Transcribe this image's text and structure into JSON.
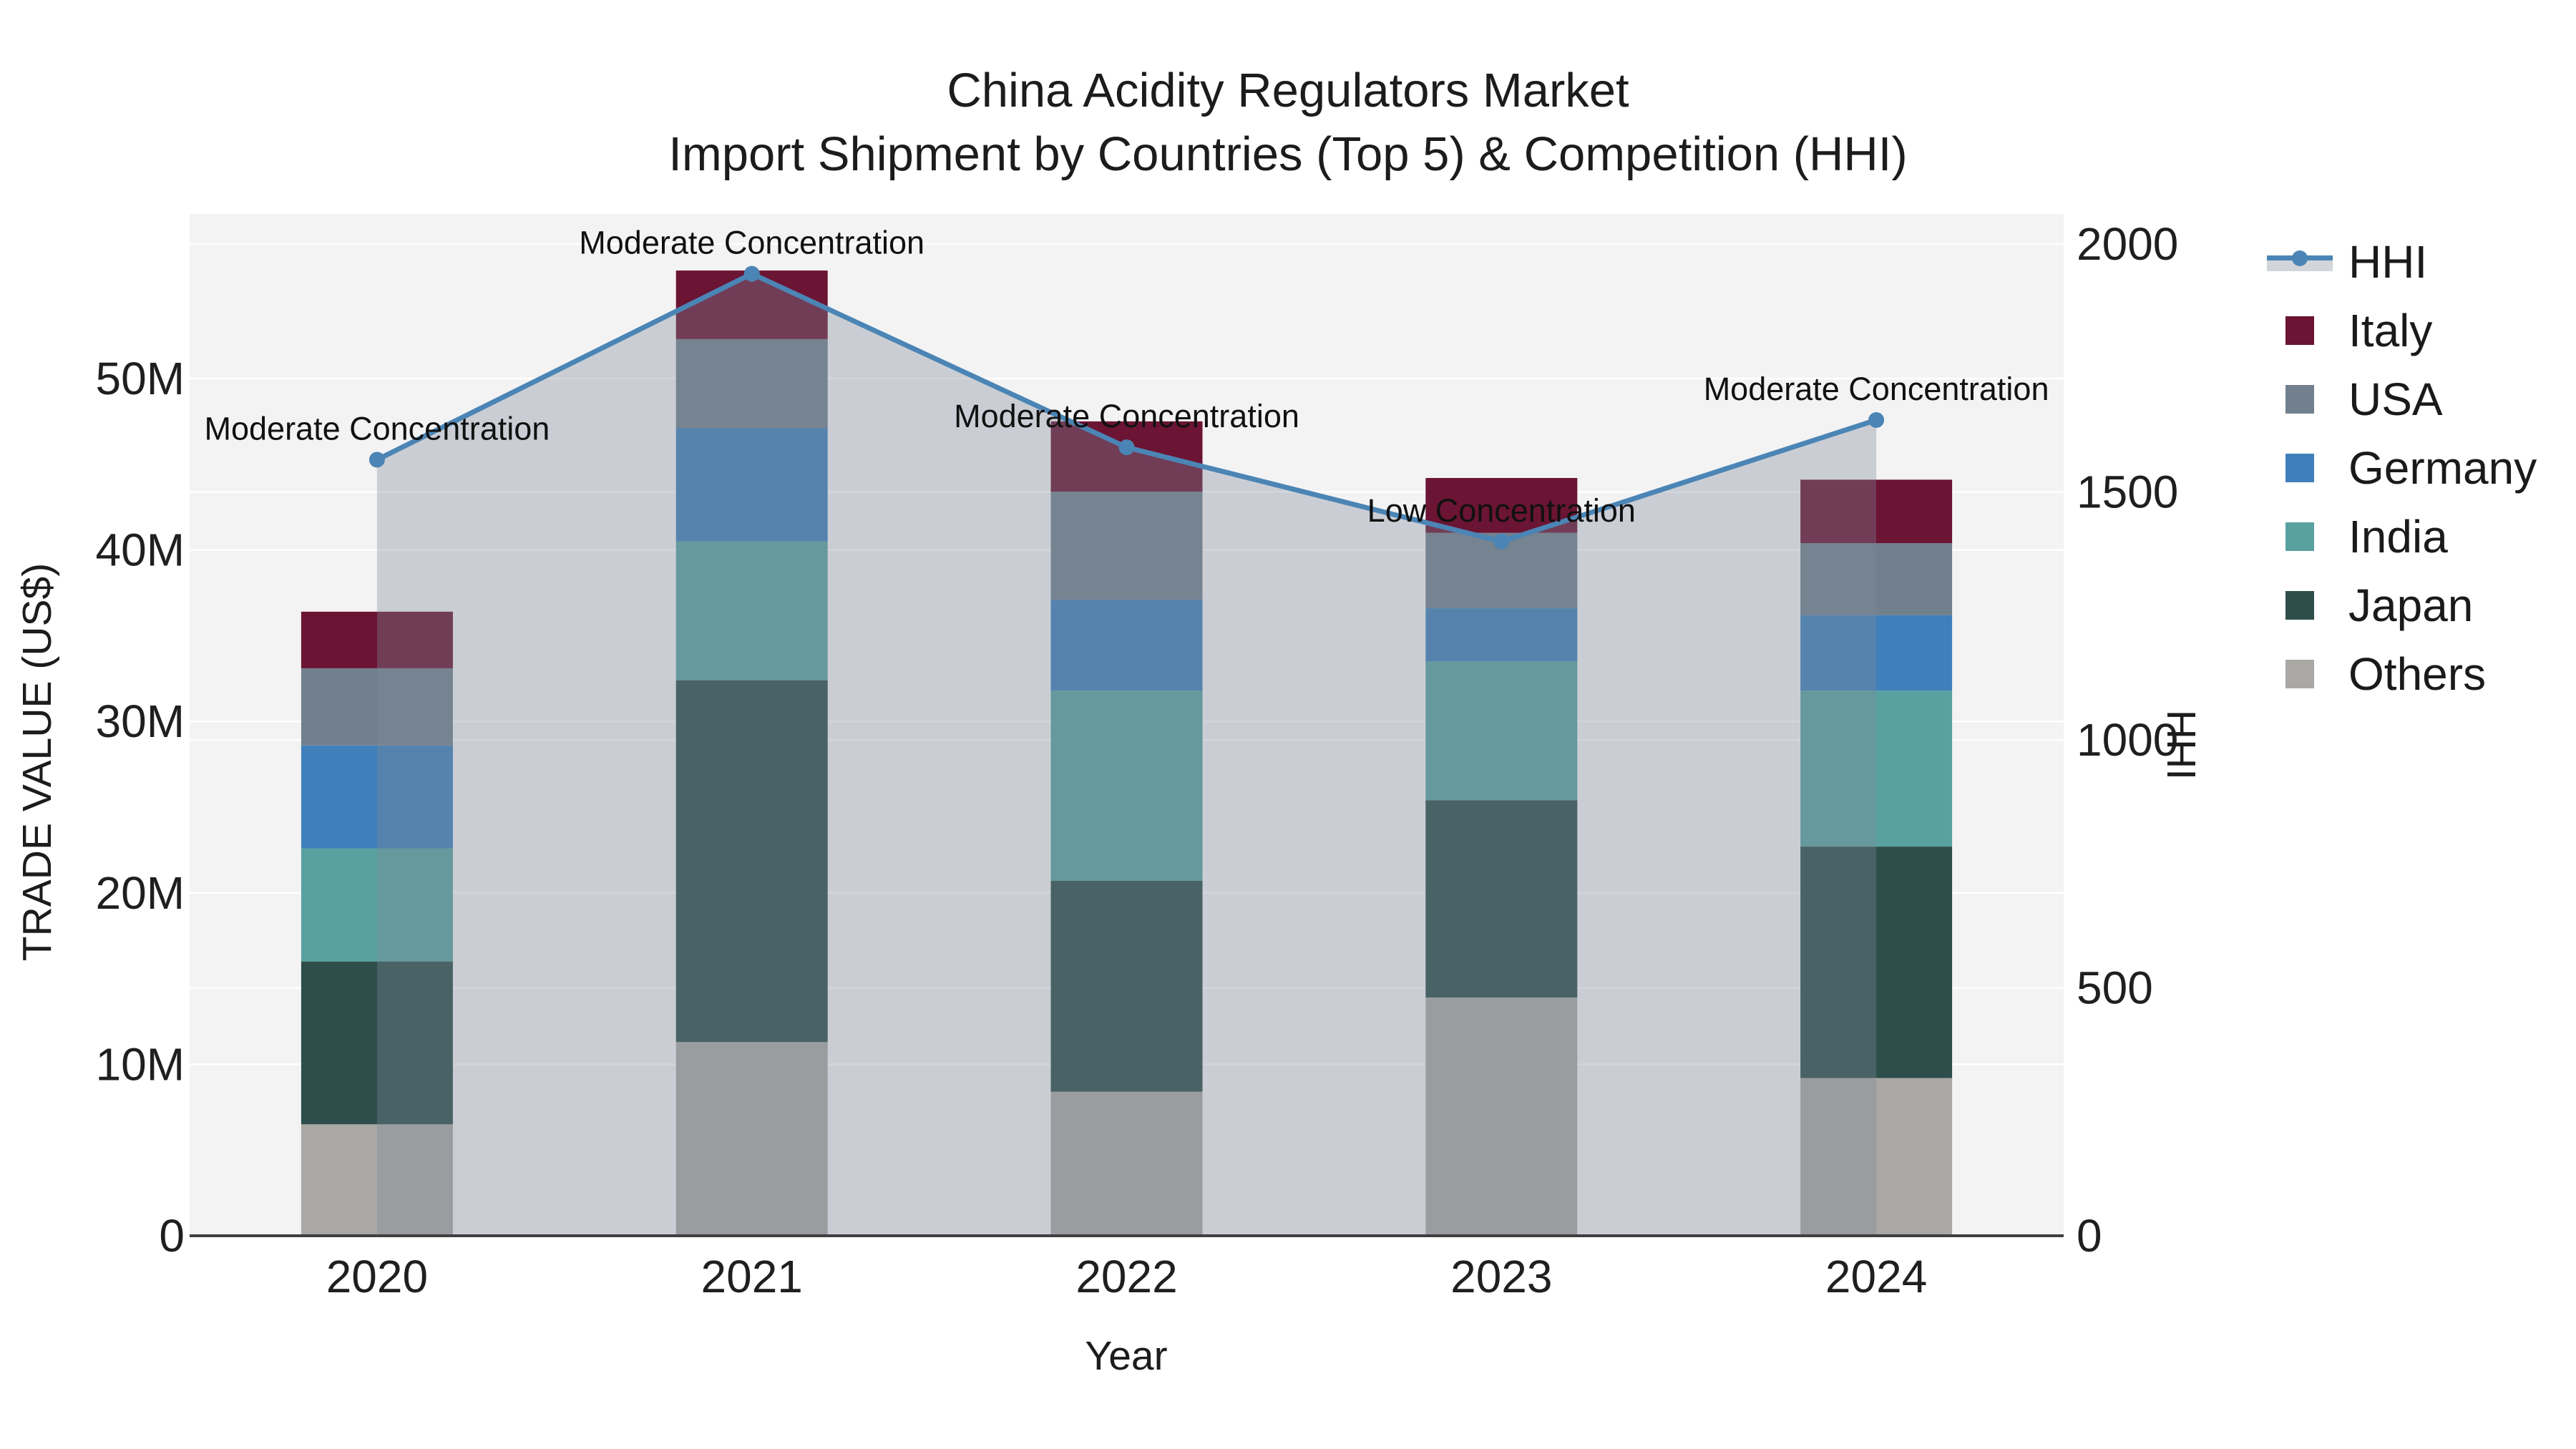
{
  "title": {
    "line1": "China Acidity Regulators Market",
    "line2": "Import Shipment by Countries (Top 5) & Competition (HHI)"
  },
  "axes": {
    "y_left": {
      "title": "TRADE VALUE (US$)",
      "tick_labels": [
        "0",
        "10M",
        "20M",
        "30M",
        "40M",
        "50M"
      ],
      "tick_values": [
        0,
        10,
        20,
        30,
        40,
        50
      ]
    },
    "y_right": {
      "title": "HHI",
      "tick_labels": [
        "0",
        "500",
        "1000",
        "1500",
        "2000"
      ],
      "tick_values": [
        0,
        500,
        1000,
        1500,
        2000
      ]
    },
    "x": {
      "title": "Year"
    }
  },
  "chart_data": {
    "type": "stacked_bar+line",
    "categories": [
      "2020",
      "2021",
      "2022",
      "2023",
      "2024"
    ],
    "bar_unit": "million US$",
    "series": [
      {
        "name": "Others",
        "color": "#A9A8A5",
        "values": [
          6.5,
          11.3,
          8.4,
          13.9,
          9.2
        ]
      },
      {
        "name": "Japan",
        "color": "#2D4E4B",
        "values": [
          9.5,
          21.1,
          12.3,
          11.5,
          13.5
        ]
      },
      {
        "name": "India",
        "color": "#59A1A1",
        "values": [
          6.6,
          8.1,
          11.1,
          8.1,
          9.1
        ]
      },
      {
        "name": "Germany",
        "color": "#4080BA",
        "values": [
          6.0,
          6.6,
          5.3,
          3.1,
          4.4
        ]
      },
      {
        "name": "USA",
        "color": "#72808E",
        "values": [
          4.5,
          5.2,
          6.3,
          4.4,
          4.2
        ]
      },
      {
        "name": "Italy",
        "color": "#6B1433",
        "values": [
          3.3,
          4.0,
          4.1,
          3.2,
          3.7
        ]
      }
    ],
    "bar_totals": [
      36.4,
      56.3,
      47.5,
      44.2,
      44.1
    ],
    "line_series": {
      "name": "HHI",
      "values": [
        1565,
        1940,
        1590,
        1400,
        1645
      ]
    },
    "annotations": [
      {
        "year": "2020",
        "text": "Moderate Concentration"
      },
      {
        "year": "2021",
        "text": "Moderate Concentration"
      },
      {
        "year": "2022",
        "text": "Moderate Concentration"
      },
      {
        "year": "2023",
        "text": "Low Concentration"
      },
      {
        "year": "2024",
        "text": "Moderate Concentration"
      }
    ],
    "ylim_left": [
      0,
      59.6
    ],
    "ylim_right": [
      0,
      2060
    ],
    "grid": true,
    "legend_position": "right"
  },
  "legend": {
    "items": [
      {
        "label": "HHI",
        "type": "line",
        "color": "#4B85B5"
      },
      {
        "label": "Italy",
        "type": "swatch",
        "color": "#6B1433"
      },
      {
        "label": "USA",
        "type": "swatch",
        "color": "#72808E"
      },
      {
        "label": "Germany",
        "type": "swatch",
        "color": "#4080BA"
      },
      {
        "label": "India",
        "type": "swatch",
        "color": "#59A1A1"
      },
      {
        "label": "Japan",
        "type": "swatch",
        "color": "#2D4E4B"
      },
      {
        "label": "Others",
        "type": "swatch",
        "color": "#A9A8A5"
      }
    ]
  },
  "colors": {
    "figure_bg": "#FFFFFF",
    "plot_bg": "#F3F3F4",
    "gridline": "#FFFFFF",
    "spine": "#3F3F3F",
    "text": "#1F1F1F",
    "hhi_line": "#4B85B5",
    "hhi_area_fill": "rgba(125,138,152,0.35)",
    "annotation_text": "#111111"
  }
}
